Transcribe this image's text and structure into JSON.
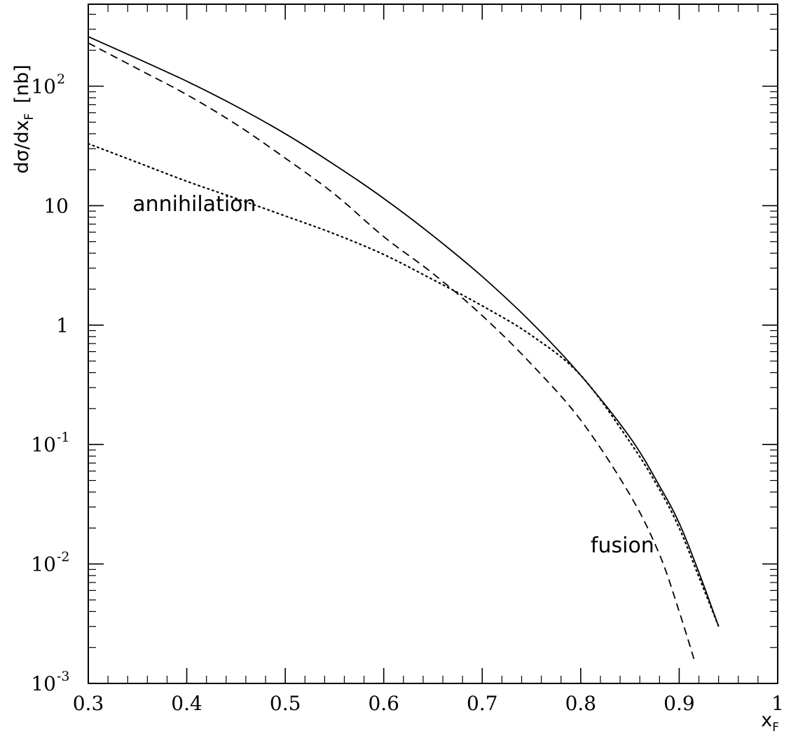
{
  "chart_data": {
    "type": "line",
    "title": "",
    "xlabel": {
      "base": "x",
      "sub": "F"
    },
    "ylabel": {
      "prefix": "dσ/dx",
      "sub": "F",
      "unit": "[nb]"
    },
    "xlim": [
      0.3,
      1.0
    ],
    "ylim": [
      0.001,
      400
    ],
    "yscale": "log",
    "grid": false,
    "x_ticks": [
      {
        "value": 0.3,
        "label": "0.3"
      },
      {
        "value": 0.4,
        "label": "0.4"
      },
      {
        "value": 0.5,
        "label": "0.5"
      },
      {
        "value": 0.6,
        "label": "0.6"
      },
      {
        "value": 0.7,
        "label": "0.7"
      },
      {
        "value": 0.8,
        "label": "0.8"
      },
      {
        "value": 0.9,
        "label": "0.9"
      },
      {
        "value": 1.0,
        "label": "1"
      }
    ],
    "y_ticks": [
      {
        "value": 0.001,
        "base": "10",
        "exp": "-3"
      },
      {
        "value": 0.01,
        "base": "10",
        "exp": "-2"
      },
      {
        "value": 0.1,
        "base": "10",
        "exp": "-1"
      },
      {
        "value": 1,
        "base": "1",
        "exp": ""
      },
      {
        "value": 10,
        "base": "10",
        "exp": ""
      },
      {
        "value": 100,
        "base": "10",
        "exp": "2"
      }
    ],
    "annotations": [
      {
        "text": "annihilation",
        "x": 0.345,
        "y": 9.0
      },
      {
        "text": "fusion",
        "x": 0.81,
        "y": 0.0125
      }
    ],
    "series": [
      {
        "style": "solid",
        "x": [
          0.3,
          0.35,
          0.4,
          0.45,
          0.5,
          0.55,
          0.6,
          0.65,
          0.7,
          0.75,
          0.8,
          0.85,
          0.88,
          0.9,
          0.92,
          0.94
        ],
        "y": [
          260,
          170,
          110,
          68,
          40,
          22,
          11.5,
          5.6,
          2.55,
          1.05,
          0.38,
          0.115,
          0.045,
          0.022,
          0.0085,
          0.003
        ]
      },
      {
        "style": "dashed",
        "x": [
          0.3,
          0.35,
          0.4,
          0.45,
          0.5,
          0.55,
          0.6,
          0.65,
          0.7,
          0.75,
          0.8,
          0.85,
          0.88,
          0.9,
          0.915
        ],
        "y": [
          230,
          140,
          85,
          48,
          25,
          12.5,
          5.5,
          2.7,
          1.2,
          0.47,
          0.16,
          0.038,
          0.012,
          0.004,
          0.0016
        ]
      },
      {
        "style": "dotted",
        "x": [
          0.3,
          0.35,
          0.4,
          0.45,
          0.5,
          0.55,
          0.6,
          0.65,
          0.7,
          0.75,
          0.8,
          0.85,
          0.88,
          0.9,
          0.92,
          0.94
        ],
        "y": [
          33,
          23,
          16,
          11.5,
          8.2,
          5.8,
          3.9,
          2.4,
          1.45,
          0.82,
          0.38,
          0.105,
          0.042,
          0.02,
          0.0078,
          0.003
        ]
      }
    ]
  }
}
